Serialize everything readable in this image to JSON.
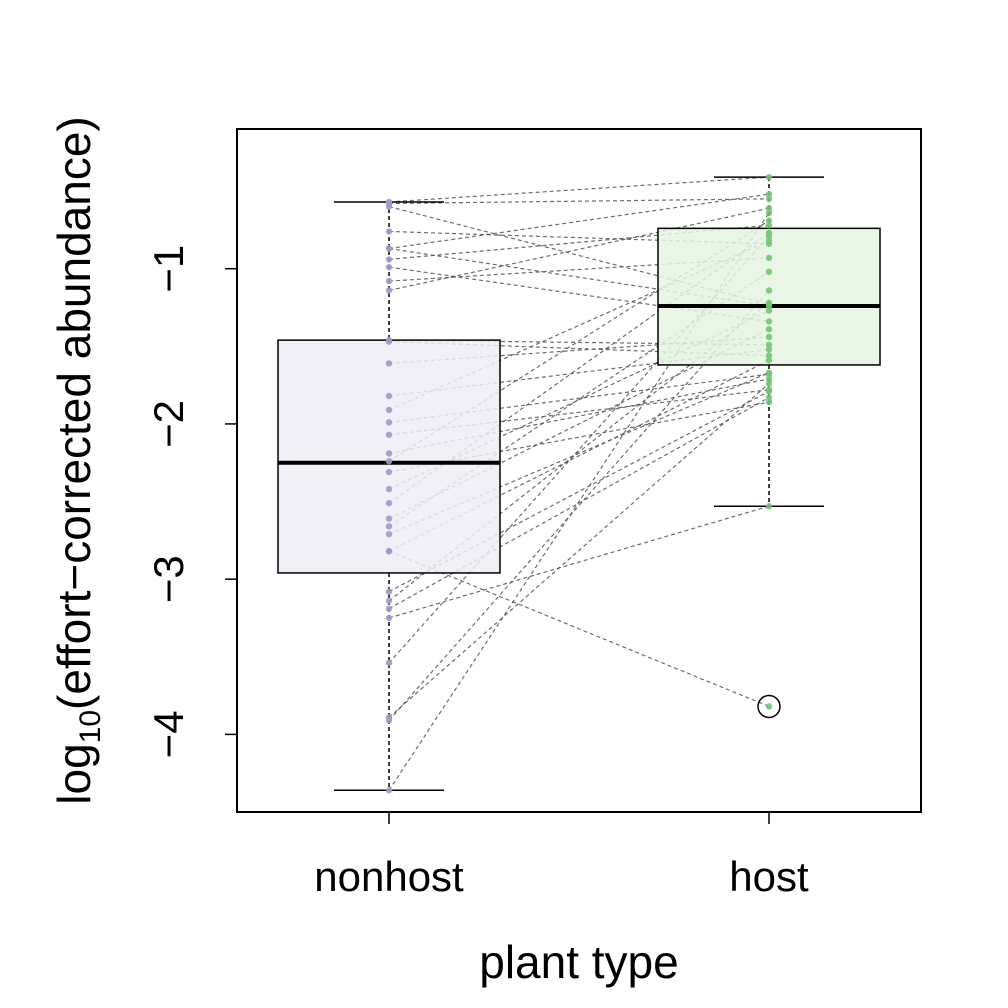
{
  "chart_data": {
    "type": "boxplot",
    "xlabel": "plant type",
    "ylabel_parts": {
      "prefix": "log",
      "subscript": "10",
      "suffix": "(effort−corrected abundance)"
    },
    "categories": [
      "nonhost",
      "host"
    ],
    "ylim": [
      -4.5,
      -0.1
    ],
    "yticks": [
      -1,
      -2,
      -3,
      -4
    ],
    "ytick_labels": [
      "−1",
      "−2",
      "−3",
      "−4"
    ],
    "colors": {
      "nonhost_box": "#efedf5",
      "nonhost_points": "#9e9ac8",
      "host_box": "#e5f5e0",
      "host_points": "#74c476",
      "lines": "#555555"
    },
    "boxes": [
      {
        "name": "nonhost",
        "whisker_low": -4.36,
        "q1": -2.96,
        "median": -2.25,
        "q3": -1.46,
        "whisker_high": -0.57,
        "outliers": []
      },
      {
        "name": "host",
        "whisker_low": -2.53,
        "q1": -1.62,
        "median": -1.24,
        "q3": -0.74,
        "whisker_high": -0.41,
        "outliers": [
          -3.82
        ]
      }
    ],
    "pairs": [
      [
        -0.57,
        -0.41
      ],
      [
        -0.58,
        -0.55
      ],
      [
        -0.6,
        -1.23
      ],
      [
        -0.76,
        -0.84
      ],
      [
        -0.87,
        -0.52
      ],
      [
        -0.87,
        -1.24
      ],
      [
        -0.94,
        -0.72
      ],
      [
        -0.99,
        -1.34
      ],
      [
        -1.08,
        -0.93
      ],
      [
        -1.14,
        -0.61
      ],
      [
        -1.46,
        -1.49
      ],
      [
        -1.47,
        -1.56
      ],
      [
        -1.61,
        -1.44
      ],
      [
        -1.82,
        -1.52
      ],
      [
        -1.91,
        -0.82
      ],
      [
        -1.99,
        -1.68
      ],
      [
        -2.07,
        -1.78
      ],
      [
        -2.19,
        -1.71
      ],
      [
        -2.24,
        -0.69
      ],
      [
        -2.31,
        -1.86
      ],
      [
        -2.42,
        -1.27
      ],
      [
        -2.51,
        -0.77
      ],
      [
        -2.61,
        -1.39
      ],
      [
        -2.66,
        -1.02
      ],
      [
        -2.71,
        -1.67
      ],
      [
        -2.82,
        -1.59
      ],
      [
        -2.82,
        -3.82
      ],
      [
        -3.08,
        -1.79
      ],
      [
        -3.14,
        -1.22
      ],
      [
        -3.19,
        -1.83
      ],
      [
        -3.25,
        -2.53
      ],
      [
        -3.54,
        -0.79
      ],
      [
        -3.89,
        -1.74
      ],
      [
        -3.91,
        -1.14
      ],
      [
        -4.36,
        -0.64
      ]
    ]
  }
}
